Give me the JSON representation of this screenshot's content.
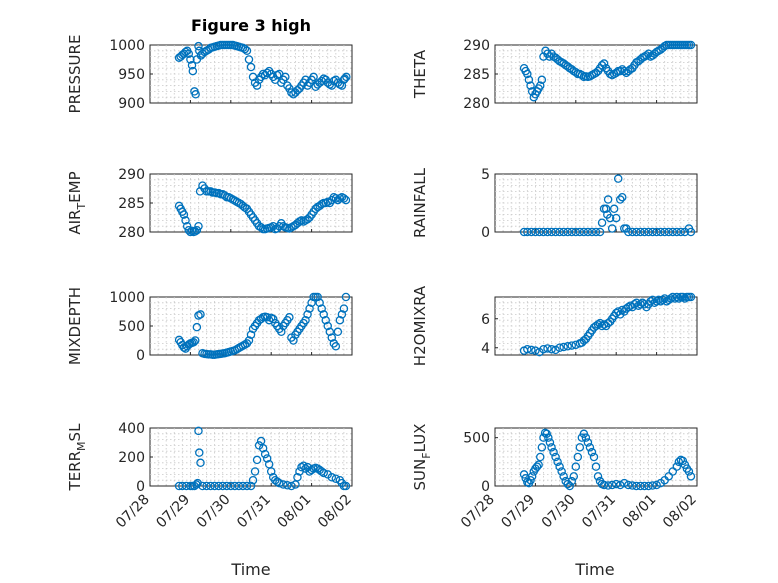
{
  "figure_title": "Figure 3 high",
  "x_axis": {
    "label": "Time",
    "ticks": [
      "07/28",
      "07/29",
      "07/30",
      "07/31",
      "08/01",
      "08/02"
    ],
    "range": [
      0,
      5
    ]
  },
  "colors": {
    "marker": "#0072BD",
    "axis": "#262626",
    "grid": "#c8c8c8"
  },
  "chart_data": [
    {
      "type": "scatter",
      "ylabel": "PRESSURE",
      "ylabel_sub": "",
      "ylabel_suffix": "",
      "ylim": [
        900,
        1000
      ],
      "yticks": [
        900,
        950,
        1000
      ],
      "xlim": [
        0,
        5
      ],
      "grid": true,
      "x": [
        0.72,
        0.76,
        0.8,
        0.84,
        0.88,
        0.92,
        0.96,
        1.0,
        1.04,
        1.06,
        1.1,
        1.13,
        1.16,
        1.2,
        1.22,
        1.26,
        1.3,
        1.35,
        1.4,
        1.45,
        1.5,
        1.55,
        1.6,
        1.65,
        1.7,
        1.75,
        1.8,
        1.85,
        1.9,
        1.95,
        2.0,
        2.05,
        2.1,
        2.15,
        2.2,
        2.25,
        2.3,
        2.35,
        2.4,
        2.45,
        2.5,
        2.55,
        2.6,
        2.65,
        2.7,
        2.75,
        2.8,
        2.85,
        2.9,
        2.95,
        3.0,
        3.05,
        3.1,
        3.15,
        3.2,
        3.25,
        3.3,
        3.35,
        3.4,
        3.45,
        3.5,
        3.55,
        3.6,
        3.65,
        3.7,
        3.75,
        3.8,
        3.85,
        3.9,
        3.95,
        4.0,
        4.05,
        4.1,
        4.15,
        4.2,
        4.25,
        4.3,
        4.35,
        4.4,
        4.45,
        4.5,
        4.55,
        4.6,
        4.65,
        4.7,
        4.75,
        4.8,
        4.82,
        4.86
      ],
      "y": [
        978,
        980,
        983,
        985,
        988,
        990,
        985,
        975,
        965,
        955,
        920,
        915,
        975,
        998,
        990,
        982,
        985,
        988,
        990,
        992,
        995,
        996,
        997,
        998,
        999,
        1000,
        1000,
        1000,
        1001,
        1001,
        1000,
        1000,
        999,
        998,
        997,
        996,
        995,
        993,
        990,
        975,
        962,
        945,
        935,
        930,
        940,
        945,
        950,
        948,
        952,
        955,
        950,
        945,
        940,
        948,
        950,
        935,
        940,
        945,
        930,
        925,
        918,
        915,
        918,
        922,
        925,
        930,
        935,
        940,
        930,
        935,
        940,
        945,
        928,
        932,
        935,
        938,
        942,
        940,
        935,
        932,
        930,
        938,
        940,
        935,
        932,
        930,
        940,
        942,
        945
      ],
      "note_dummy": ""
    },
    {
      "type": "scatter",
      "ylabel": "THETA",
      "ylabel_sub": "",
      "ylabel_suffix": "",
      "ylim": [
        280,
        290
      ],
      "yticks": [
        280,
        285,
        290
      ],
      "xlim": [
        0,
        5
      ],
      "grid": true,
      "x": [
        0.72,
        0.76,
        0.8,
        0.84,
        0.88,
        0.92,
        0.96,
        1.0,
        1.04,
        1.08,
        1.12,
        1.16,
        1.2,
        1.25,
        1.3,
        1.35,
        1.4,
        1.45,
        1.5,
        1.55,
        1.6,
        1.65,
        1.7,
        1.75,
        1.8,
        1.85,
        1.9,
        1.95,
        2.0,
        2.05,
        2.1,
        2.15,
        2.2,
        2.25,
        2.3,
        2.35,
        2.4,
        2.45,
        2.5,
        2.55,
        2.6,
        2.65,
        2.7,
        2.75,
        2.8,
        2.85,
        2.9,
        2.95,
        3.0,
        3.05,
        3.1,
        3.15,
        3.2,
        3.25,
        3.3,
        3.35,
        3.4,
        3.45,
        3.5,
        3.55,
        3.6,
        3.65,
        3.7,
        3.75,
        3.8,
        3.85,
        3.9,
        3.95,
        4.0,
        4.05,
        4.1,
        4.15,
        4.2,
        4.25,
        4.3,
        4.35,
        4.4,
        4.45,
        4.5,
        4.55,
        4.6,
        4.65,
        4.7,
        4.75,
        4.8,
        4.85
      ],
      "y": [
        286,
        285.5,
        285,
        284,
        283,
        282,
        281,
        281.5,
        282,
        282.5,
        283,
        284,
        288,
        289,
        288.5,
        288,
        288.5,
        288,
        287.8,
        287.5,
        287.2,
        287,
        286.8,
        286.5,
        286.3,
        286,
        285.8,
        285.5,
        285.3,
        285,
        285,
        284.8,
        284.5,
        284.6,
        284.5,
        284.6,
        284.8,
        285,
        285.2,
        285.5,
        286,
        286.5,
        286.8,
        286,
        285.5,
        285,
        284.8,
        285,
        285.2,
        285.5,
        285.5,
        285.8,
        285.5,
        285.2,
        285.5,
        285.8,
        286,
        286.5,
        287,
        287.2,
        287.5,
        287.8,
        288,
        288.2,
        288.5,
        288,
        288.2,
        288.5,
        288.8,
        289,
        289.2,
        289.5,
        289.8,
        290,
        290.2,
        290.2,
        290.3,
        290.4,
        290.5,
        290.5,
        290.5,
        290.5,
        290.4,
        290.5,
        290.5,
        290.5
      ]
    },
    {
      "type": "scatter",
      "ylabel": "AIR",
      "ylabel_sub": "T",
      "ylabel_suffix": "EMP",
      "ylim": [
        280,
        290
      ],
      "yticks": [
        280,
        285,
        290
      ],
      "xlim": [
        0,
        5
      ],
      "grid": true,
      "x": [
        0.72,
        0.76,
        0.8,
        0.84,
        0.88,
        0.92,
        0.96,
        1.0,
        1.04,
        1.08,
        1.12,
        1.16,
        1.2,
        1.24,
        1.3,
        1.35,
        1.4,
        1.45,
        1.5,
        1.55,
        1.6,
        1.65,
        1.7,
        1.75,
        1.8,
        1.85,
        1.9,
        1.95,
        2.0,
        2.05,
        2.1,
        2.15,
        2.2,
        2.25,
        2.3,
        2.35,
        2.4,
        2.45,
        2.5,
        2.55,
        2.6,
        2.65,
        2.7,
        2.75,
        2.8,
        2.85,
        2.9,
        2.95,
        3.0,
        3.05,
        3.1,
        3.15,
        3.2,
        3.25,
        3.3,
        3.35,
        3.4,
        3.45,
        3.5,
        3.55,
        3.6,
        3.65,
        3.7,
        3.75,
        3.8,
        3.85,
        3.9,
        3.95,
        4.0,
        4.05,
        4.1,
        4.15,
        4.2,
        4.25,
        4.3,
        4.35,
        4.4,
        4.45,
        4.5,
        4.55,
        4.6,
        4.65,
        4.7,
        4.75,
        4.8,
        4.85
      ],
      "y": [
        284.5,
        284,
        283.5,
        283,
        282,
        281,
        280.3,
        280,
        280.2,
        280,
        280.1,
        280.3,
        281,
        287,
        288,
        287.5,
        287,
        287,
        287,
        286.8,
        286.8,
        286.7,
        286.7,
        286.5,
        286.5,
        286.3,
        286,
        286,
        285.8,
        285.6,
        285.4,
        285.2,
        285,
        284.8,
        284.5,
        284.2,
        284,
        283.5,
        283,
        282.5,
        282,
        281.5,
        281,
        280.8,
        280.5,
        280.5,
        280.6,
        280.7,
        280.8,
        281,
        280.5,
        280.6,
        281,
        281.5,
        281,
        280.8,
        280.7,
        280.6,
        280.8,
        281,
        281.2,
        281.5,
        281.8,
        282,
        281.8,
        282,
        282.2,
        282.5,
        283,
        283.5,
        284,
        284.3,
        284.5,
        284.8,
        285,
        285,
        285.2,
        285,
        285.5,
        286,
        285.8,
        285.5,
        285.8,
        286,
        285.8,
        285.5
      ]
    },
    {
      "type": "scatter",
      "ylabel": "RAINFALL",
      "ylabel_sub": "",
      "ylabel_suffix": "",
      "ylim": [
        0,
        5
      ],
      "yticks": [
        0,
        5
      ],
      "xlim": [
        0,
        5
      ],
      "grid": true,
      "x": [
        0.72,
        0.8,
        0.9,
        1.0,
        1.1,
        1.2,
        1.3,
        1.4,
        1.5,
        1.6,
        1.7,
        1.8,
        1.9,
        2.0,
        2.1,
        2.2,
        2.3,
        2.4,
        2.5,
        2.6,
        2.65,
        2.7,
        2.75,
        2.78,
        2.8,
        2.85,
        2.9,
        2.95,
        3.0,
        3.05,
        3.1,
        3.15,
        3.2,
        3.25,
        3.3,
        3.4,
        3.5,
        3.6,
        3.7,
        3.8,
        3.9,
        4.0,
        4.1,
        4.2,
        4.3,
        4.4,
        4.5,
        4.6,
        4.7,
        4.8,
        4.85
      ],
      "y": [
        0,
        0,
        0,
        0,
        0,
        0,
        0,
        0,
        0,
        0,
        0,
        0,
        0,
        0,
        0,
        0,
        0,
        0,
        0,
        0,
        0.8,
        2.0,
        2.0,
        1.5,
        2.8,
        1.2,
        0.3,
        2.0,
        1.2,
        4.6,
        2.8,
        3.0,
        0.3,
        0.3,
        0,
        0,
        0,
        0,
        0,
        0,
        0,
        0,
        0,
        0,
        0,
        0,
        0,
        0,
        0,
        0.3,
        0
      ]
    },
    {
      "type": "scatter",
      "ylabel": "MIXDEPTH",
      "ylabel_sub": "",
      "ylabel_suffix": "",
      "ylim": [
        0,
        1000
      ],
      "yticks": [
        0,
        500,
        1000
      ],
      "xlim": [
        0,
        5
      ],
      "grid": true,
      "x": [
        0.72,
        0.76,
        0.8,
        0.84,
        0.88,
        0.92,
        0.96,
        1.0,
        1.04,
        1.08,
        1.12,
        1.16,
        1.2,
        1.25,
        1.3,
        1.35,
        1.4,
        1.45,
        1.5,
        1.55,
        1.6,
        1.65,
        1.7,
        1.75,
        1.8,
        1.85,
        1.9,
        1.95,
        2.0,
        2.05,
        2.1,
        2.15,
        2.2,
        2.25,
        2.3,
        2.35,
        2.4,
        2.45,
        2.5,
        2.55,
        2.6,
        2.65,
        2.7,
        2.75,
        2.8,
        2.85,
        2.9,
        2.95,
        3.0,
        3.05,
        3.1,
        3.15,
        3.2,
        3.25,
        3.3,
        3.35,
        3.4,
        3.45,
        3.5,
        3.55,
        3.6,
        3.65,
        3.7,
        3.75,
        3.8,
        3.85,
        3.9,
        3.95,
        4.0,
        4.05,
        4.1,
        4.15,
        4.2,
        4.25,
        4.3,
        4.35,
        4.4,
        4.45,
        4.5,
        4.55,
        4.6,
        4.65,
        4.7,
        4.75,
        4.8,
        4.85
      ],
      "y": [
        260,
        220,
        170,
        130,
        110,
        150,
        180,
        200,
        210,
        220,
        250,
        480,
        680,
        700,
        30,
        20,
        15,
        10,
        10,
        5,
        5,
        10,
        15,
        20,
        25,
        30,
        40,
        50,
        60,
        70,
        80,
        100,
        120,
        140,
        160,
        180,
        200,
        250,
        350,
        450,
        500,
        550,
        600,
        620,
        650,
        660,
        650,
        600,
        640,
        620,
        550,
        500,
        450,
        400,
        500,
        550,
        600,
        650,
        300,
        250,
        350,
        400,
        450,
        500,
        550,
        600,
        700,
        800,
        900,
        1000,
        1050,
        1000,
        900,
        800,
        700,
        600,
        500,
        400,
        300,
        200,
        150,
        400,
        600,
        700,
        800,
        1000
      ]
    },
    {
      "type": "scatter",
      "ylabel": "H2OMIXRA",
      "ylabel_sub": "",
      "ylabel_suffix": "",
      "ylim": [
        3.5,
        7.5
      ],
      "yticks": [
        4,
        6
      ],
      "xlim": [
        0,
        5
      ],
      "grid": true,
      "x": [
        0.72,
        0.8,
        0.9,
        1.0,
        1.1,
        1.2,
        1.3,
        1.4,
        1.5,
        1.6,
        1.7,
        1.8,
        1.9,
        2.0,
        2.1,
        2.15,
        2.2,
        2.25,
        2.3,
        2.35,
        2.4,
        2.45,
        2.5,
        2.55,
        2.6,
        2.65,
        2.7,
        2.75,
        2.8,
        2.85,
        2.9,
        2.95,
        3.0,
        3.05,
        3.1,
        3.15,
        3.2,
        3.25,
        3.3,
        3.35,
        3.4,
        3.45,
        3.5,
        3.55,
        3.6,
        3.65,
        3.7,
        3.75,
        3.8,
        3.85,
        3.9,
        3.95,
        4.0,
        4.05,
        4.1,
        4.15,
        4.2,
        4.25,
        4.3,
        4.35,
        4.4,
        4.45,
        4.5,
        4.55,
        4.6,
        4.65,
        4.7,
        4.75,
        4.8,
        4.85
      ],
      "y": [
        3.8,
        3.9,
        3.85,
        3.8,
        3.7,
        3.9,
        3.95,
        3.9,
        3.85,
        4.0,
        4.05,
        4.1,
        4.15,
        4.2,
        4.3,
        4.35,
        4.5,
        4.6,
        4.8,
        5.0,
        5.2,
        5.4,
        5.5,
        5.6,
        5.7,
        5.5,
        5.6,
        5.5,
        5.7,
        5.8,
        6.0,
        6.2,
        6.4,
        6.5,
        6.3,
        6.6,
        6.5,
        6.7,
        6.8,
        6.9,
        6.8,
        7.0,
        7.1,
        6.9,
        7.0,
        7.1,
        7.0,
        6.8,
        7.0,
        7.2,
        7.3,
        7.1,
        7.2,
        7.3,
        7.2,
        7.3,
        7.4,
        7.2,
        7.3,
        7.4,
        7.5,
        7.4,
        7.5,
        7.4,
        7.5,
        7.5,
        7.4,
        7.5,
        7.5,
        7.5
      ]
    },
    {
      "type": "scatter",
      "ylabel": "TERR",
      "ylabel_sub": "M",
      "ylabel_suffix": "SL",
      "ylim": [
        0,
        400
      ],
      "yticks": [
        0,
        200,
        400
      ],
      "xlim": [
        0,
        5
      ],
      "grid": true,
      "x": [
        0.72,
        0.8,
        0.9,
        1.0,
        1.05,
        1.1,
        1.15,
        1.18,
        1.2,
        1.22,
        1.25,
        1.3,
        1.4,
        1.5,
        1.6,
        1.7,
        1.8,
        1.9,
        2.0,
        2.1,
        2.2,
        2.3,
        2.4,
        2.5,
        2.55,
        2.6,
        2.65,
        2.7,
        2.75,
        2.8,
        2.85,
        2.9,
        2.95,
        3.0,
        3.05,
        3.1,
        3.15,
        3.2,
        3.3,
        3.4,
        3.5,
        3.6,
        3.65,
        3.7,
        3.75,
        3.8,
        3.85,
        3.9,
        3.95,
        4.0,
        4.05,
        4.1,
        4.15,
        4.2,
        4.25,
        4.3,
        4.4,
        4.5,
        4.6,
        4.7,
        4.75,
        4.8,
        4.85
      ],
      "y": [
        0,
        0,
        0,
        0,
        0,
        0,
        10,
        20,
        380,
        230,
        160,
        0,
        0,
        0,
        0,
        0,
        0,
        0,
        0,
        0,
        0,
        0,
        0,
        0,
        40,
        100,
        180,
        280,
        310,
        260,
        220,
        190,
        150,
        100,
        60,
        40,
        30,
        20,
        10,
        5,
        0,
        10,
        60,
        100,
        130,
        140,
        120,
        130,
        100,
        110,
        120,
        125,
        120,
        110,
        100,
        90,
        80,
        60,
        50,
        40,
        20,
        0,
        0
      ]
    },
    {
      "type": "scatter",
      "ylabel": "SUN",
      "ylabel_sub": "F",
      "ylabel_suffix": "LUX",
      "ylim": [
        0,
        600
      ],
      "yticks": [
        0,
        500
      ],
      "xlim": [
        0,
        5
      ],
      "grid": true,
      "x": [
        0.72,
        0.76,
        0.8,
        0.84,
        0.88,
        0.92,
        0.96,
        1.0,
        1.04,
        1.08,
        1.12,
        1.16,
        1.2,
        1.24,
        1.28,
        1.32,
        1.36,
        1.4,
        1.45,
        1.5,
        1.55,
        1.6,
        1.65,
        1.7,
        1.75,
        1.8,
        1.85,
        1.9,
        1.95,
        2.0,
        2.05,
        2.1,
        2.15,
        2.2,
        2.25,
        2.3,
        2.35,
        2.4,
        2.45,
        2.5,
        2.55,
        2.6,
        2.65,
        2.7,
        2.8,
        2.9,
        3.0,
        3.1,
        3.2,
        3.3,
        3.4,
        3.5,
        3.6,
        3.7,
        3.8,
        3.9,
        4.0,
        4.1,
        4.2,
        4.3,
        4.4,
        4.5,
        4.55,
        4.6,
        4.65,
        4.7,
        4.75,
        4.8,
        4.85
      ],
      "y": [
        120,
        80,
        40,
        30,
        60,
        100,
        150,
        180,
        200,
        220,
        300,
        400,
        500,
        550,
        540,
        500,
        450,
        400,
        350,
        300,
        250,
        200,
        150,
        100,
        50,
        20,
        0,
        50,
        100,
        200,
        300,
        400,
        500,
        540,
        500,
        450,
        400,
        350,
        300,
        200,
        100,
        50,
        20,
        10,
        5,
        10,
        20,
        10,
        30,
        10,
        5,
        0,
        0,
        0,
        0,
        5,
        10,
        30,
        60,
        100,
        150,
        200,
        250,
        270,
        260,
        220,
        180,
        150,
        100
      ]
    }
  ]
}
